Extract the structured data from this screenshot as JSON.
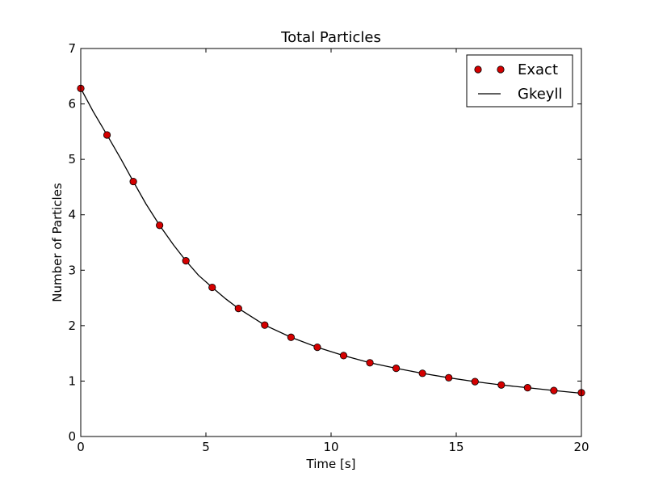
{
  "chart_data": {
    "type": "line",
    "title": "Total Particles",
    "xlabel": "Time [s]",
    "ylabel": "Number of Particles",
    "xlim": [
      0,
      20
    ],
    "ylim": [
      0,
      7
    ],
    "xticks": [
      0,
      5,
      10,
      15,
      20
    ],
    "yticks": [
      0,
      1,
      2,
      3,
      4,
      5,
      6,
      7
    ],
    "grid": false,
    "legend_position": "top-right",
    "series": [
      {
        "name": "Exact",
        "style": "markers",
        "color": "#d40000",
        "x": [
          0.0,
          1.05,
          2.1,
          3.15,
          4.2,
          5.25,
          6.3,
          7.35,
          8.4,
          9.45,
          10.5,
          11.55,
          12.6,
          13.65,
          14.7,
          15.75,
          16.8,
          17.85,
          18.9,
          20.0
        ],
        "y": [
          6.28,
          5.44,
          4.6,
          3.81,
          3.17,
          2.69,
          2.31,
          2.01,
          1.79,
          1.61,
          1.46,
          1.33,
          1.23,
          1.14,
          1.06,
          0.99,
          0.93,
          0.88,
          0.83,
          0.79
        ]
      },
      {
        "name": "Gkeyll",
        "style": "line",
        "color": "#000000",
        "x": [
          0.0,
          0.5,
          1.05,
          1.6,
          2.1,
          2.6,
          3.15,
          3.7,
          4.2,
          4.7,
          5.25,
          5.8,
          6.3,
          7.35,
          8.4,
          9.45,
          10.5,
          11.55,
          12.6,
          13.65,
          14.7,
          15.75,
          16.8,
          17.85,
          18.9,
          20.0
        ],
        "y": [
          6.28,
          5.86,
          5.44,
          5.01,
          4.6,
          4.2,
          3.81,
          3.46,
          3.17,
          2.91,
          2.69,
          2.48,
          2.31,
          2.01,
          1.79,
          1.61,
          1.46,
          1.33,
          1.23,
          1.14,
          1.06,
          0.99,
          0.93,
          0.88,
          0.83,
          0.78
        ]
      }
    ]
  }
}
